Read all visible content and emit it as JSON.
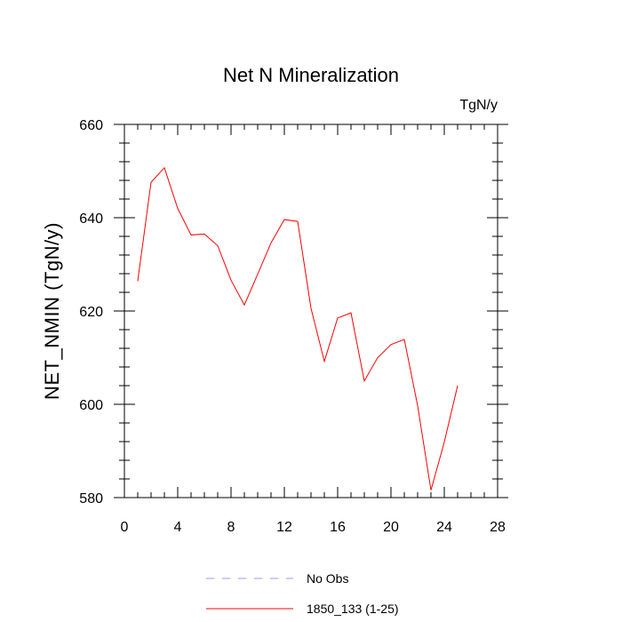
{
  "chart_data": {
    "type": "line",
    "title": "Net N Mineralization",
    "units": "TgN/y",
    "ylabel": "NET_NMIN  (TgN/y)",
    "xlabel": "",
    "xlim": [
      0,
      28
    ],
    "ylim": [
      580,
      660
    ],
    "xticks": [
      0,
      4,
      8,
      12,
      16,
      20,
      24,
      28
    ],
    "yticks": [
      580,
      600,
      620,
      640,
      660
    ],
    "xtick_labels": [
      "0",
      "4",
      "8",
      "12",
      "16",
      "20",
      "24",
      "28"
    ],
    "ytick_labels": [
      "580",
      "600",
      "620",
      "640",
      "660"
    ],
    "series": [
      {
        "name": "1850_133 (1-25)",
        "color": "#ff0000",
        "style": "solid",
        "x": [
          1,
          2,
          3,
          4,
          5,
          6,
          7,
          8,
          9,
          10,
          11,
          12,
          13,
          14,
          15,
          16,
          17,
          18,
          19,
          20,
          21,
          22,
          23,
          24,
          25
        ],
        "y": [
          626.4,
          647.6,
          650.7,
          642.0,
          636.3,
          636.5,
          634.0,
          626.6,
          621.3,
          627.9,
          634.6,
          639.6,
          639.2,
          620.6,
          609.2,
          618.5,
          619.6,
          605.0,
          610.0,
          612.8,
          613.9,
          599.7,
          581.6,
          591.9,
          604.0
        ]
      }
    ],
    "legend": [
      {
        "label": "No Obs",
        "color": "#9999ff",
        "style": "dashed"
      },
      {
        "label": "1850_133 (1-25)",
        "color": "#ff0000",
        "style": "solid"
      }
    ]
  }
}
